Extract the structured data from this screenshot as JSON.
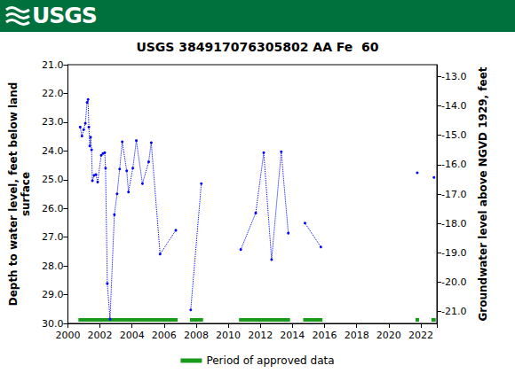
{
  "header": {
    "logo_text": "USGS"
  },
  "chart_data": {
    "type": "line",
    "title": "USGS 384917076305802 AA Fe  60",
    "y_label": "Depth to water level, feet below land\nsurface",
    "y2_label": "Groundwater level above NGVD 1929, feet",
    "x": [
      2000.77,
      2000.88,
      2000.99,
      2001.09,
      2001.2,
      2001.26,
      2001.31,
      2001.37,
      2001.42,
      2001.48,
      2001.53,
      2001.64,
      2001.75,
      2001.86,
      2002.08,
      2002.19,
      2002.3,
      2002.35,
      2002.46,
      2002.63,
      2002.9,
      2003.07,
      2003.23,
      2003.39,
      2003.67,
      2003.78,
      2004.05,
      2004.27,
      2004.65,
      2005.04,
      2005.2,
      2005.75,
      2006.73,
      null,
      2007.66,
      2008.32,
      null,
      2010.78,
      2011.71,
      2012.21,
      2012.7,
      2013.3,
      2013.74,
      null,
      2014.78,
      2015.77,
      null,
      2021.78,
      null,
      2022.82
    ],
    "values": [
      23.17,
      23.48,
      23.26,
      23.04,
      22.31,
      22.21,
      23.17,
      23.83,
      23.52,
      23.96,
      25.04,
      24.85,
      24.82,
      25.08,
      24.15,
      24.09,
      24.06,
      24.6,
      28.61,
      29.85,
      26.22,
      25.49,
      24.63,
      23.68,
      24.69,
      25.43,
      24.6,
      23.64,
      25.14,
      24.38,
      23.71,
      27.59,
      26.76,
      null,
      29.53,
      25.14,
      null,
      27.43,
      26.16,
      24.06,
      27.78,
      24.03,
      26.86,
      null,
      26.51,
      27.34,
      null,
      24.76,
      null,
      24.92
    ],
    "color": "#0000ff",
    "line_style": "dotted",
    "marker": "circle",
    "xlim": [
      2000,
      2023
    ],
    "xticks": [
      2000,
      2002,
      2004,
      2006,
      2008,
      2010,
      2012,
      2014,
      2016,
      2018,
      2020,
      2022
    ],
    "ylim": [
      21,
      30
    ],
    "yticks": [
      {
        "value": 21,
        "label": "21.0"
      },
      {
        "value": 22,
        "label": "22.0"
      },
      {
        "value": 23,
        "label": "23.0"
      },
      {
        "value": 24,
        "label": "24.0"
      },
      {
        "value": 25,
        "label": "25.0"
      },
      {
        "value": 26,
        "label": "26.0"
      },
      {
        "value": 27,
        "label": "27.0"
      },
      {
        "value": 28,
        "label": "28.0"
      },
      {
        "value": 29,
        "label": "29.0"
      },
      {
        "value": 30,
        "label": "30.0"
      }
    ],
    "y2lim": [
      -21.4,
      -12.6
    ],
    "y2ticks": [
      {
        "value": -21,
        "label": "-21.0"
      },
      {
        "value": -20,
        "label": "-20.0"
      },
      {
        "value": -19,
        "label": "-19.0"
      },
      {
        "value": -18,
        "label": "-18.0"
      },
      {
        "value": -17,
        "label": "-17.0"
      },
      {
        "value": -16,
        "label": "-16.0"
      },
      {
        "value": -15,
        "label": "-15.0"
      },
      {
        "value": -14,
        "label": "-14.0"
      },
      {
        "value": -13,
        "label": "-13.0"
      }
    ],
    "grid": false,
    "legend": "bottom",
    "approved_periods": {
      "name": "Period of approved data",
      "color": "#1a9a1a",
      "ranges": [
        [
          2000.66,
          2006.84
        ],
        [
          2007.61,
          2008.43
        ],
        [
          2010.67,
          2013.85
        ],
        [
          2014.67,
          2015.87
        ],
        [
          2021.67,
          2021.89
        ],
        [
          2022.66,
          2022.93
        ]
      ]
    }
  }
}
